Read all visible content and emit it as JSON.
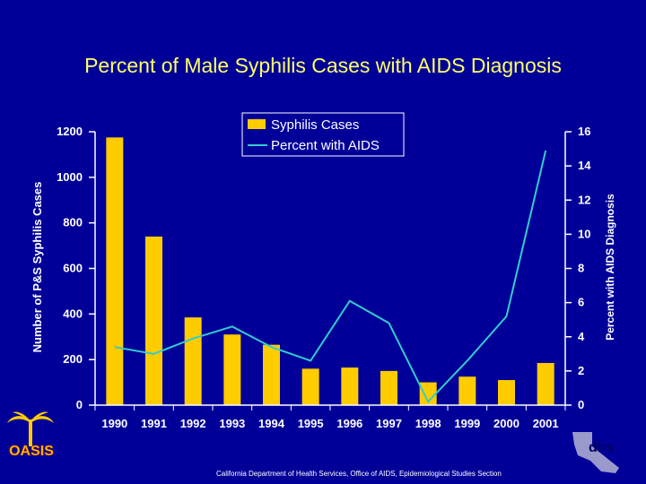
{
  "title": "Percent of Male Syphilis Cases with AIDS Diagnosis",
  "footer": "California Department of Health Services, Office of AIDS, Epidemiological Studies Section",
  "logos": {
    "left_text": "OASIS",
    "right_text": "dhs"
  },
  "colors": {
    "background": "#000099",
    "title": "#ffff66",
    "bars": "#ffcc00",
    "line": "#33cccc",
    "text": "#ffffff"
  },
  "chart_data": {
    "type": "bar",
    "categories": [
      "1990",
      "1991",
      "1992",
      "1993",
      "1994",
      "1995",
      "1996",
      "1997",
      "1998",
      "1999",
      "2000",
      "2001"
    ],
    "series": [
      {
        "name": "Syphilis Cases",
        "type": "bar",
        "axis": "left",
        "values": [
          1175,
          740,
          385,
          310,
          265,
          160,
          165,
          150,
          100,
          125,
          110,
          185
        ]
      },
      {
        "name": "Percent with AIDS",
        "type": "line",
        "axis": "right",
        "values": [
          3.4,
          3.0,
          3.9,
          4.6,
          3.4,
          2.6,
          6.1,
          4.8,
          0.2,
          2.6,
          5.2,
          14.9
        ]
      }
    ],
    "ylabel": "Number of P&S Syphilis Cases",
    "ylabel_right": "Percent with AIDS Diagnosis",
    "ylim": [
      0,
      1200
    ],
    "ylim_right": [
      0,
      16
    ],
    "yticks": [
      "0",
      "200",
      "400",
      "600",
      "800",
      "1000",
      "1200"
    ],
    "yticks_right": [
      "0",
      "2",
      "4",
      "6",
      "8",
      "10",
      "12",
      "14",
      "16"
    ],
    "legend_position": "top-center",
    "grid": false
  }
}
